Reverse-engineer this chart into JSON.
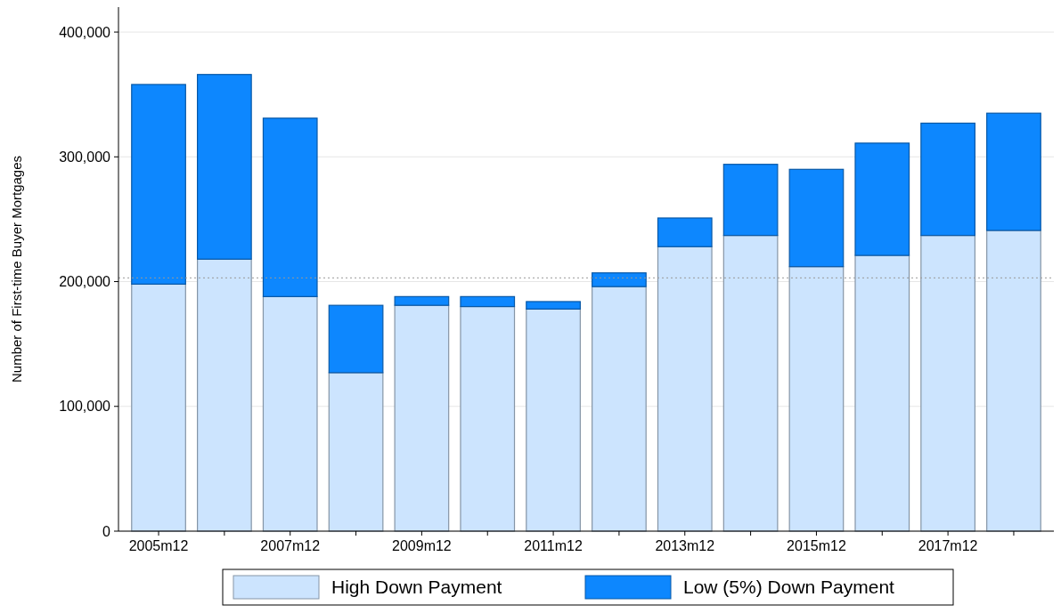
{
  "chart_data": {
    "type": "bar",
    "stacked": true,
    "ylabel": "Number of First-time Buyer Mortgages",
    "categories": [
      "2005m12",
      null,
      "2007m12",
      null,
      "2009m12",
      null,
      "2011m12",
      null,
      "2013m12",
      null,
      "2015m12",
      null,
      "2017m12",
      null
    ],
    "series": [
      {
        "name": "High Down Payment",
        "color": "#cce4fe",
        "values": [
          198000,
          218000,
          188000,
          127000,
          181000,
          180000,
          178000,
          196000,
          228000,
          237000,
          212000,
          221000,
          237000,
          241000
        ]
      },
      {
        "name": "Low (5%) Down Payment",
        "color": "#0d87fe",
        "values": [
          160000,
          148000,
          143000,
          54000,
          7000,
          8000,
          6000,
          11000,
          23000,
          57000,
          78000,
          90000,
          90000,
          94000
        ]
      }
    ],
    "ylim": [
      0,
      420000
    ],
    "yticks": [
      {
        "value": 0,
        "label": "0"
      },
      {
        "value": 100000,
        "label": "100,000"
      },
      {
        "value": 200000,
        "label": "200,000"
      },
      {
        "value": 300000,
        "label": "300,000"
      },
      {
        "value": 400000,
        "label": "400,000"
      }
    ],
    "grid": "y",
    "legend": "bottom",
    "ref_lines": [
      {
        "axis": "y",
        "value": 203000,
        "color": "#999999",
        "line_style": "dotted"
      }
    ]
  }
}
